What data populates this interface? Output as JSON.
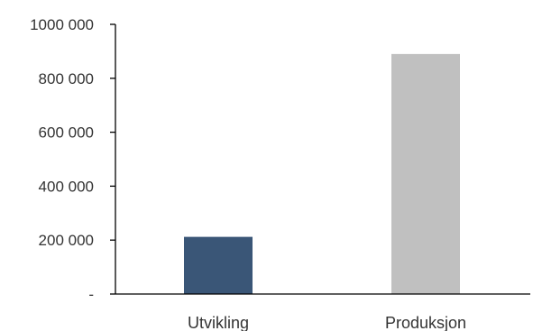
{
  "chart_data": {
    "type": "bar",
    "categories": [
      "Utvikling",
      "Produksjon"
    ],
    "values": [
      212000,
      890000
    ],
    "colors": [
      "#3a5677",
      "#c0c0c0"
    ],
    "ylim": [
      0,
      1000000
    ],
    "yticks": [
      0,
      200000,
      400000,
      600000,
      800000,
      1000000
    ],
    "ytick_labels": [
      "-",
      "200 000",
      "400 000",
      "600 000",
      "800 000",
      "1000 000"
    ],
    "grid": false,
    "legend": "none"
  }
}
